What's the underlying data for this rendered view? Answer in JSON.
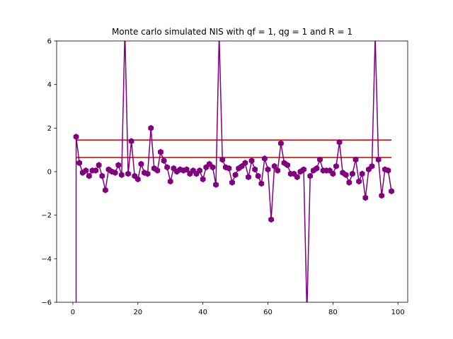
{
  "chart_data": {
    "type": "line",
    "title": "Monte carlo simulated NIS with qf = 1, qg = 1 and R = 1",
    "xlabel": "",
    "ylabel": "",
    "xlim": [
      -5,
      103
    ],
    "ylim": [
      -6,
      6
    ],
    "xticks": [
      0,
      20,
      40,
      60,
      80,
      100
    ],
    "yticks": [
      -6,
      -4,
      -2,
      0,
      2,
      4,
      6
    ],
    "xtick_labels": [
      "0",
      "20",
      "40",
      "60",
      "80",
      "100"
    ],
    "ytick_labels": [
      "−6",
      "−4",
      "−2",
      "0",
      "2",
      "4",
      "6"
    ],
    "grid": false,
    "series": [
      {
        "color": "#800080",
        "marker": "hexagon",
        "x": [
          1,
          2,
          3,
          4,
          5,
          6,
          7,
          8,
          9,
          10,
          11,
          12,
          13,
          14,
          15,
          16,
          17,
          18,
          19,
          20,
          21,
          22,
          23,
          24,
          25,
          26,
          27,
          28,
          29,
          30,
          31,
          32,
          33,
          34,
          35,
          36,
          37,
          38,
          39,
          40,
          41,
          42,
          43,
          44,
          45,
          46,
          47,
          48,
          49,
          50,
          51,
          52,
          53,
          54,
          55,
          56,
          57,
          58,
          59,
          60,
          61,
          62,
          63,
          64,
          65,
          66,
          67,
          68,
          69,
          70,
          71,
          72,
          73,
          74,
          75,
          76,
          77,
          78,
          79,
          80,
          81,
          82,
          83,
          84,
          85,
          86,
          87,
          88,
          89,
          90,
          91,
          92,
          93,
          94,
          95,
          96,
          97,
          98
        ],
        "values": [
          1.6,
          0.4,
          -0.05,
          0.05,
          -0.2,
          0.05,
          0.05,
          0.3,
          -0.2,
          -0.85,
          0.1,
          0.0,
          -0.05,
          0.3,
          -0.15,
          6.5,
          -0.1,
          1.4,
          -0.2,
          -0.35,
          0.35,
          -0.05,
          -0.1,
          2.0,
          0.15,
          0.05,
          0.9,
          0.5,
          0.2,
          -0.45,
          0.15,
          0.0,
          0.1,
          0.05,
          0.1,
          -0.1,
          0.05,
          -0.1,
          0.05,
          -0.35,
          0.2,
          0.35,
          0.2,
          -0.6,
          6.3,
          0.55,
          0.2,
          0.15,
          -0.5,
          -0.15,
          0.15,
          0.25,
          0.4,
          -0.25,
          0.5,
          0.1,
          -0.2,
          -0.55,
          0.6,
          0.1,
          -2.2,
          0.25,
          0.05,
          1.3,
          0.4,
          0.3,
          -0.1,
          -0.1,
          -0.25,
          0.0,
          0.1,
          -6.5,
          -0.2,
          0.05,
          0.15,
          0.55,
          0.05,
          0.05,
          0.05,
          -0.1,
          0.25,
          1.35,
          -0.05,
          -0.15,
          -0.5,
          -0.1,
          0.55,
          -0.45,
          -0.1,
          -1.2,
          0.1,
          0.25,
          6.2,
          0.55,
          -1.1,
          0.1,
          0.05,
          -0.9
        ]
      }
    ],
    "hlines": [
      {
        "y": 1.45,
        "color": "#cc0000",
        "x_start": 1,
        "x_end": 98
      },
      {
        "y": 0.65,
        "color": "#cc0000",
        "x_start": 1,
        "x_end": 98
      }
    ],
    "first_point_drop": {
      "x": 1,
      "from": 1.6,
      "to": -6.5
    }
  }
}
